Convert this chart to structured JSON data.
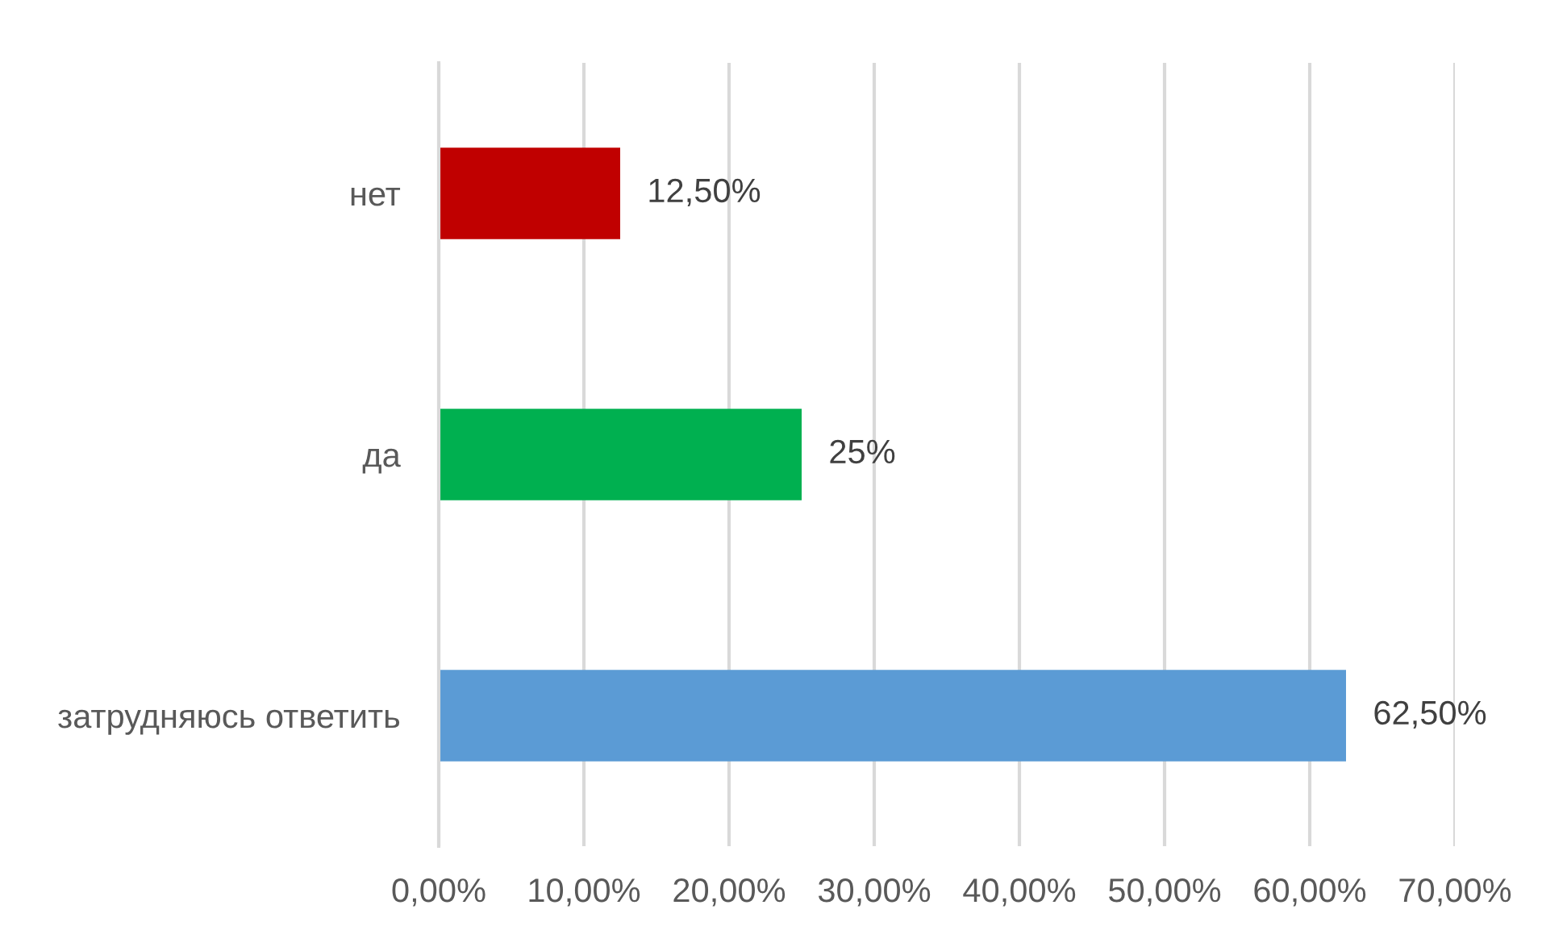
{
  "chart_data": {
    "type": "bar",
    "orientation": "horizontal",
    "categories": [
      "нет",
      "да",
      "затрудняюсь ответить"
    ],
    "values": [
      12.5,
      25,
      62.5
    ],
    "colors": [
      "#c00000",
      "#00b050",
      "#5b9bd5"
    ],
    "value_labels": [
      "12,50%",
      "25%",
      "62,50%"
    ],
    "xlim": [
      0,
      70
    ],
    "xticks": [
      {
        "value": 0,
        "label": "0,00%"
      },
      {
        "value": 10,
        "label": "10,00%"
      },
      {
        "value": 20,
        "label": "20,00%"
      },
      {
        "value": 30,
        "label": "30,00%"
      },
      {
        "value": 40,
        "label": "40,00%"
      },
      {
        "value": 50,
        "label": "50,00%"
      },
      {
        "value": 60,
        "label": "60,00%"
      },
      {
        "value": 70,
        "label": "70,00%"
      }
    ],
    "grid": "x"
  }
}
